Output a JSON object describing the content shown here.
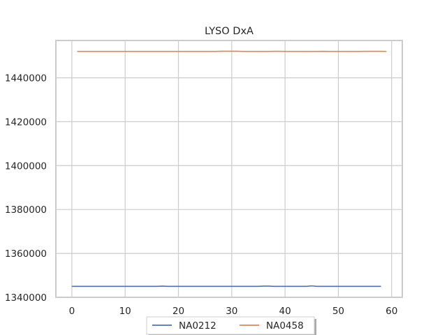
{
  "chart_data": {
    "type": "line",
    "title": "LYSO DxA",
    "xlabel": "",
    "ylabel": "",
    "xlim": [
      -3,
      62
    ],
    "ylim": [
      1340000,
      1457000
    ],
    "xticks": [
      0,
      10,
      20,
      30,
      40,
      50,
      60
    ],
    "yticks": [
      1340000,
      1360000,
      1380000,
      1400000,
      1420000,
      1440000
    ],
    "grid": true,
    "legend_position": "bottom-center",
    "series": [
      {
        "name": "NA0212",
        "color": "#4c72b0",
        "x_start": 0,
        "x_end": 58,
        "values": [
          1345000,
          1345000,
          1345000,
          1345000,
          1345000,
          1345000,
          1345000,
          1345000,
          1345000,
          1345000,
          1345000,
          1345000,
          1345000,
          1345000,
          1345000,
          1345000,
          1345000,
          1345100,
          1345000,
          1345000,
          1345000,
          1345000,
          1345000,
          1345000,
          1345000,
          1345000,
          1345000,
          1345000,
          1345000,
          1345000,
          1345000,
          1345000,
          1345000,
          1345000,
          1345000,
          1345000,
          1345100,
          1345100,
          1345000,
          1345000,
          1345000,
          1345000,
          1345000,
          1345000,
          1345000,
          1345200,
          1345000,
          1345000,
          1345000,
          1345000,
          1345000,
          1345000,
          1345000,
          1345000,
          1345000,
          1345000,
          1345000,
          1345000,
          1345000
        ]
      },
      {
        "name": "NA0458",
        "color": "#dd8452",
        "x_start": 1,
        "x_end": 59,
        "values": [
          1452000,
          1452000,
          1452000,
          1452000,
          1452000,
          1452000,
          1452000,
          1452000,
          1452000,
          1452000,
          1452000,
          1452000,
          1452000,
          1452000,
          1452000,
          1452000,
          1452000,
          1452000,
          1452000,
          1452000,
          1452000,
          1452000,
          1452000,
          1452000,
          1452000,
          1452000,
          1452000,
          1452100,
          1452100,
          1452100,
          1452100,
          1452000,
          1452000,
          1452000,
          1452000,
          1452000,
          1452000,
          1452050,
          1452050,
          1452000,
          1452000,
          1452000,
          1452000,
          1452000,
          1452000,
          1452000,
          1452050,
          1452000,
          1452000,
          1452000,
          1452000,
          1452000,
          1452000,
          1452000,
          1452050,
          1452050,
          1452050,
          1452050,
          1452000
        ]
      }
    ]
  }
}
